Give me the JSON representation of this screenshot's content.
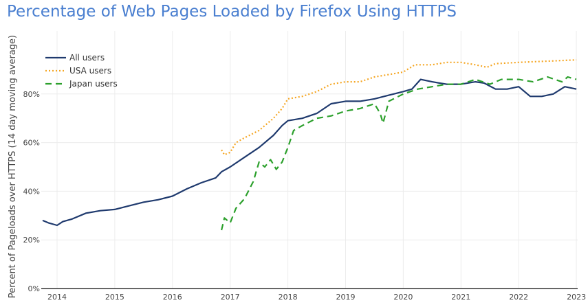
{
  "chart_data": {
    "type": "line",
    "title": "Percentage of Web Pages Loaded by Firefox Using HTTPS",
    "xlabel": "",
    "ylabel": "Percent of Pageloads over HTTPS (14 day moving average)",
    "xlim": [
      2013.72,
      2023.03
    ],
    "ylim": [
      0,
      100
    ],
    "x_ticks": [
      "2014",
      "2015",
      "2016",
      "2017",
      "2018",
      "2019",
      "2020",
      "2021",
      "2022",
      "2023"
    ],
    "x_tick_values": [
      2014,
      2015,
      2016,
      2017,
      2018,
      2019,
      2020,
      2021,
      2022,
      2023
    ],
    "y_ticks": [
      "0%",
      "20%",
      "40%",
      "60%",
      "80%"
    ],
    "y_tick_values": [
      0,
      20,
      40,
      60,
      80
    ],
    "grid": true,
    "legend_position": "top-left",
    "series": [
      {
        "name": "All users",
        "color": "#1f3a6e",
        "style": "solid",
        "x": [
          2013.75,
          2013.85,
          2014.0,
          2014.1,
          2014.25,
          2014.5,
          2014.75,
          2015.0,
          2015.25,
          2015.5,
          2015.75,
          2016.0,
          2016.25,
          2016.5,
          2016.75,
          2016.85,
          2017.0,
          2017.25,
          2017.5,
          2017.75,
          2017.9,
          2018.0,
          2018.25,
          2018.5,
          2018.75,
          2019.0,
          2019.25,
          2019.5,
          2019.75,
          2020.0,
          2020.15,
          2020.3,
          2020.5,
          2020.75,
          2021.0,
          2021.25,
          2021.4,
          2021.6,
          2021.8,
          2022.0,
          2022.2,
          2022.4,
          2022.6,
          2022.8,
          2023.0
        ],
        "y": [
          28,
          27,
          26,
          27.5,
          28.5,
          31,
          32,
          32.5,
          34,
          35.5,
          36.5,
          38,
          41,
          43.5,
          45.5,
          48,
          50,
          54,
          58,
          63,
          67,
          69,
          70,
          72,
          76,
          77,
          77,
          78,
          79.5,
          81,
          82,
          86,
          85,
          84,
          84,
          85,
          84.5,
          82,
          82,
          83,
          79,
          79,
          80,
          83,
          82
        ]
      },
      {
        "name": "USA users",
        "color": "#f5a623",
        "style": "dotted",
        "x": [
          2016.85,
          2016.9,
          2017.0,
          2017.1,
          2017.25,
          2017.5,
          2017.75,
          2017.9,
          2018.0,
          2018.25,
          2018.5,
          2018.75,
          2019.0,
          2019.25,
          2019.5,
          2019.75,
          2020.0,
          2020.2,
          2020.5,
          2020.75,
          2021.0,
          2021.25,
          2021.45,
          2021.6,
          2022.0,
          2022.5,
          2023.0
        ],
        "y": [
          57,
          55,
          56,
          60,
          62,
          65,
          70,
          74,
          78,
          79,
          81,
          84,
          85,
          85,
          87,
          88,
          89,
          92,
          92,
          93,
          93,
          92,
          91,
          92.5,
          93,
          93.5,
          94
        ]
      },
      {
        "name": "Japan users",
        "color": "#2ca02c",
        "style": "dashed",
        "x": [
          2016.85,
          2016.9,
          2016.95,
          2017.0,
          2017.1,
          2017.25,
          2017.4,
          2017.5,
          2017.6,
          2017.7,
          2017.8,
          2017.9,
          2018.0,
          2018.1,
          2018.25,
          2018.5,
          2018.75,
          2019.0,
          2019.25,
          2019.5,
          2019.6,
          2019.65,
          2019.75,
          2020.0,
          2020.25,
          2020.5,
          2020.75,
          2021.0,
          2021.25,
          2021.5,
          2021.7,
          2022.0,
          2022.25,
          2022.5,
          2022.75,
          2022.85,
          2023.0
        ],
        "y": [
          24,
          29,
          28,
          27,
          33,
          37,
          44,
          52,
          50,
          53,
          49,
          52,
          58,
          65,
          67,
          70,
          71,
          73,
          74,
          76,
          72,
          68,
          77,
          80,
          82,
          83,
          84,
          84,
          86,
          84,
          86,
          86,
          85,
          87,
          85,
          87,
          86
        ]
      }
    ]
  }
}
